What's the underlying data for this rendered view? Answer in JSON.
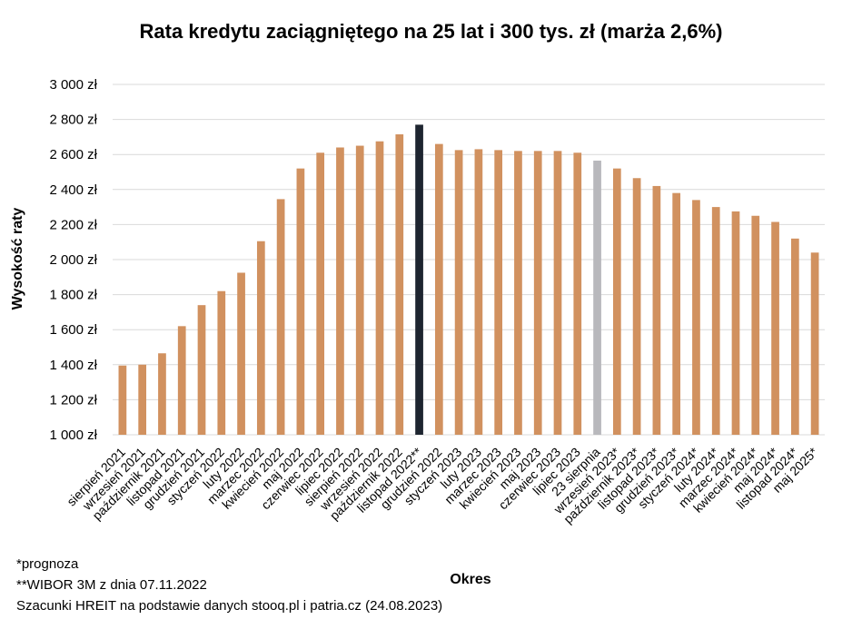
{
  "chart_data": {
    "type": "bar",
    "title": "Rata kredytu zaciągniętego na 25 lat i 300 tys. zł (marża 2,6%)",
    "xlabel": "Okres",
    "ylabel": "Wysokość raty",
    "ylim": [
      1000,
      3000
    ],
    "yticks": [
      1000,
      1200,
      1400,
      1600,
      1800,
      2000,
      2200,
      2400,
      2600,
      2800,
      3000
    ],
    "ytick_labels": [
      "1 000 zł",
      "1 200 zł",
      "1 400 zł",
      "1 600 zł",
      "1 800 zł",
      "2 000 zł",
      "2 200 zł",
      "2 400 zł",
      "2 600 zł",
      "2 800 zł",
      "3 000 zł"
    ],
    "grid": true,
    "categories": [
      "sierpień 2021",
      "wrzesień 2021",
      "październik 2021",
      "listopad 2021",
      "grudzień 2021",
      "styczeń 2022",
      "luty 2022",
      "marzec 2022",
      "kwiecień 2022",
      "maj 2022",
      "czerwiec 2022",
      "lipiec 2022",
      "sierpień 2022",
      "wrzesień 2022",
      "październik 2022",
      "listopad 2022**",
      "grudzień 2022",
      "styczeń 2023",
      "luty 2023",
      "marzec 2023",
      "kwiecień 2023",
      "maj 2023",
      "czerwiec 2023",
      "lipiec 2023",
      "23 sierpnia",
      "wrzesień 2023*",
      "październik 2023*",
      "listopad 2023*",
      "grudzień 2023*",
      "styczeń 2024*",
      "luty 2024*",
      "marzec 2024*",
      "kwiecień 2024*",
      "maj 2024*",
      "listopad 2024*",
      "maj 2025*"
    ],
    "values": [
      1395,
      1400,
      1465,
      1620,
      1740,
      1820,
      1925,
      2105,
      2345,
      2520,
      2610,
      2640,
      2650,
      2675,
      2715,
      2770,
      2660,
      2625,
      2630,
      2625,
      2620,
      2620,
      2620,
      2610,
      2565,
      2520,
      2465,
      2420,
      2380,
      2340,
      2300,
      2275,
      2250,
      2215,
      2120,
      2040
    ],
    "colors": {
      "default": "#D1915F",
      "highlight_peak": "#1E2530",
      "highlight_current": "#B8B8BC",
      "grid": "#D9D9D9"
    },
    "highlights": {
      "15": "highlight_peak",
      "24": "highlight_current"
    }
  },
  "notes": [
    "*prognoza",
    "**WIBOR 3M z dnia 07.11.2022",
    "Szacunki HREIT na podstawie danych stooq.pl i patria.cz (24.08.2023)"
  ]
}
